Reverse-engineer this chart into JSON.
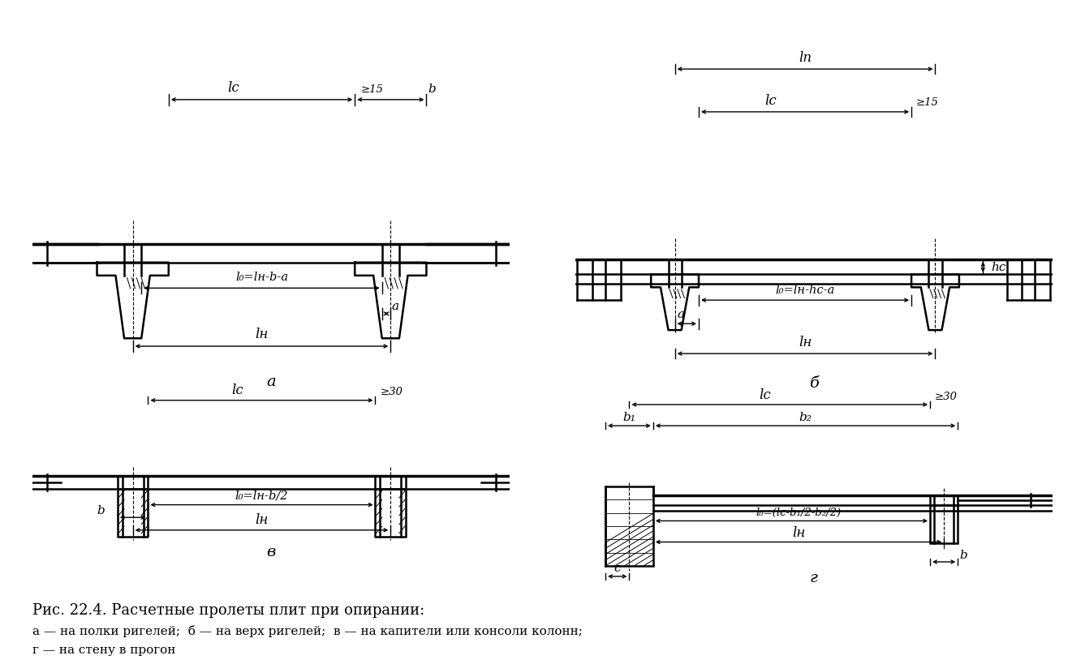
{
  "bg_color": "#ffffff",
  "title": "Рис. 22.4. Расчетные пролеты плит при опирании:",
  "sub1": "a — на полки ригелей;  б — на верх ригелей;  в — на капители или консоли колонн;",
  "sub2": "г — на стену в прогон",
  "lc": "lс",
  "ln": "lн",
  "lp": "lп",
  "l0_a": "l₀=lн-b-a",
  "l0_b": "l₀=lн-hс-a",
  "l0_v": "l₀=lн-b/2",
  "l0_g": "l₀=(lс-b₁/2-b₂/2)",
  "ge15": "≥15",
  "ge30": "≥30",
  "a_lbl": "a",
  "b_lbl": "b",
  "hc_lbl": "hс",
  "b1_lbl": "b₁",
  "b2_lbl": "b₂",
  "c_lbl": "c",
  "fa": "a",
  "fb": "б",
  "fv": "в",
  "fg": "г"
}
